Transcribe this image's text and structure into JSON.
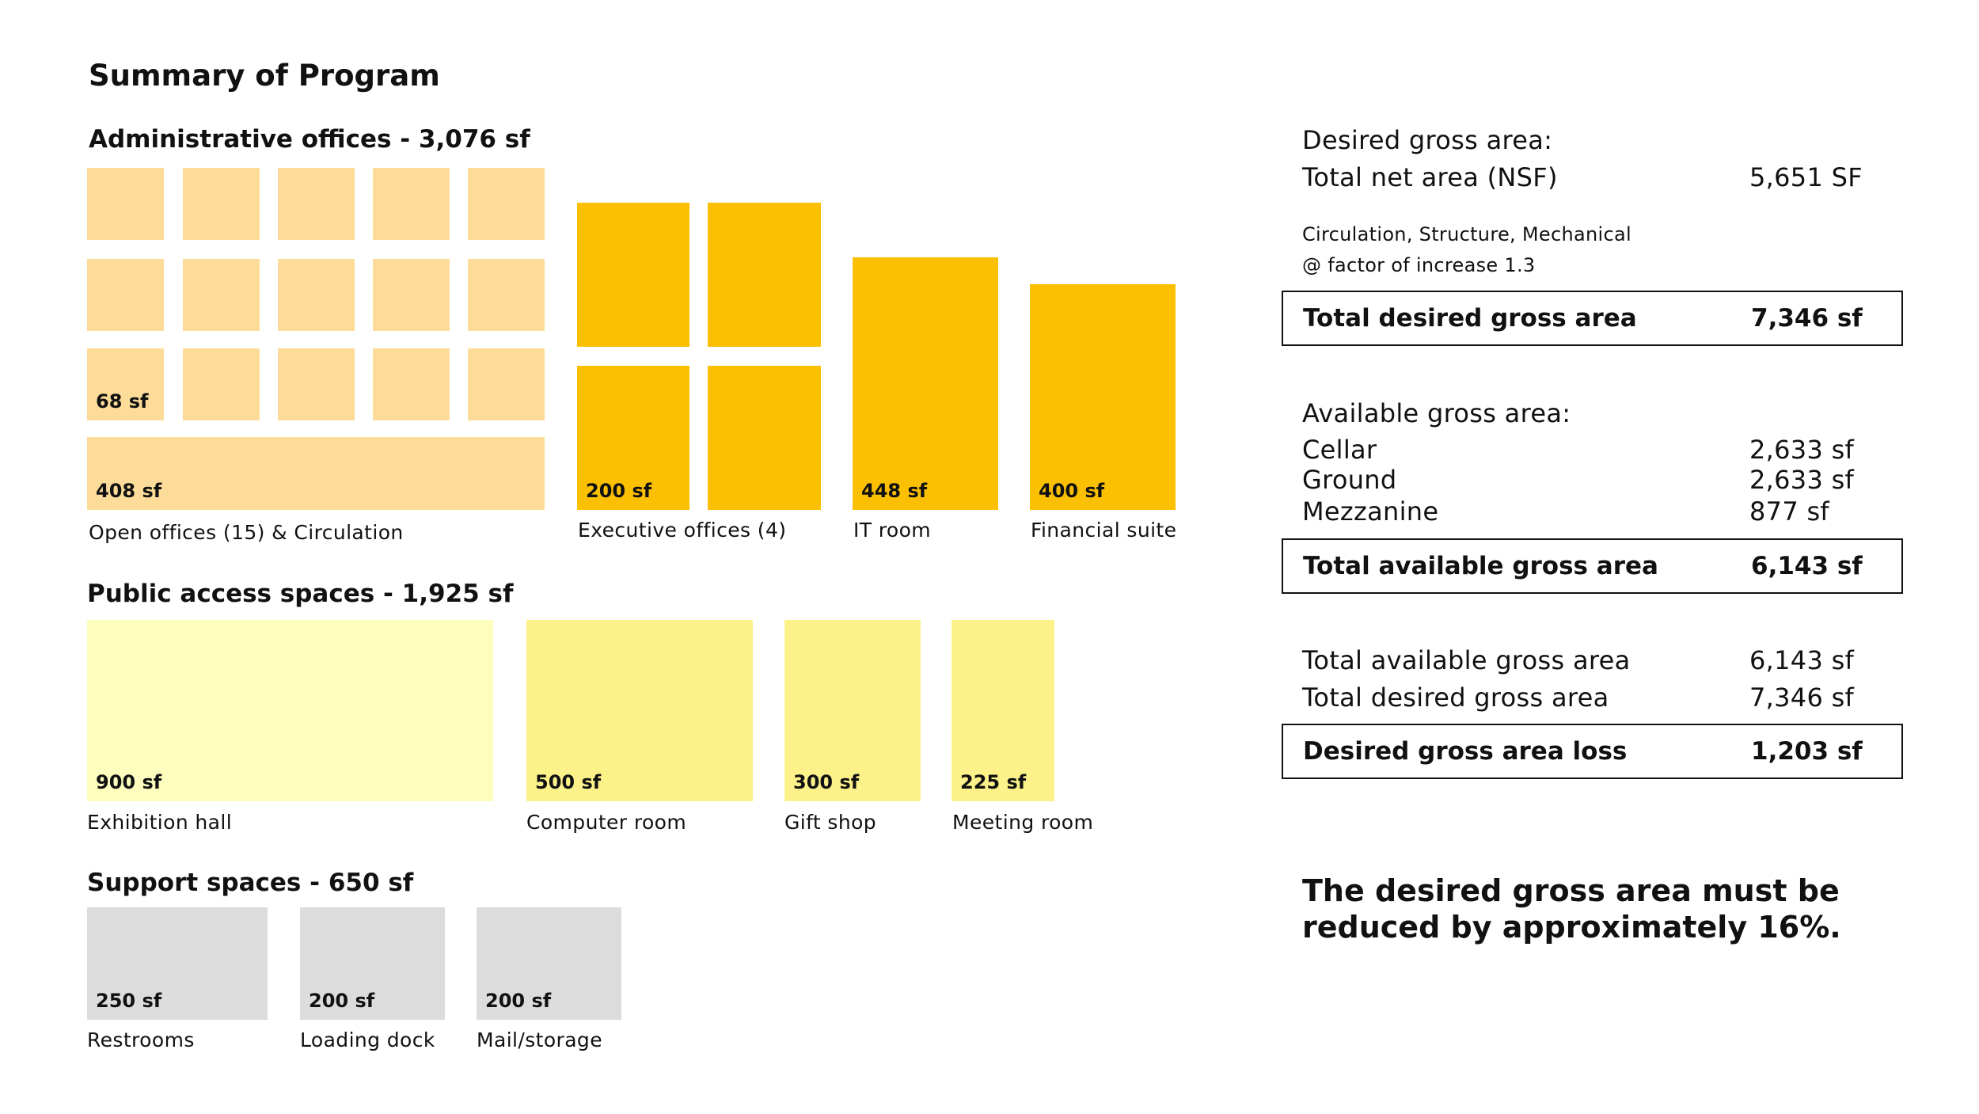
{
  "title": "Summary of Program",
  "admin": {
    "heading": "Administrative offices - 3,076 sf",
    "open_office_value": "68 sf",
    "circulation_value": "408 sf",
    "open_offices_caption": "Open offices  (15) & Circulation",
    "exec_value": "200 sf",
    "exec_caption": "Executive offices  (4)",
    "it_value": "448 sf",
    "it_caption": "IT room",
    "fin_value": "400 sf",
    "fin_caption": "Financial suite",
    "colors": {
      "open": "#fddc99",
      "core": "#fcc002"
    }
  },
  "public": {
    "heading": "Public access spaces - 1,925 sf",
    "items": [
      {
        "value": "900 sf",
        "caption": "Exhibition hall"
      },
      {
        "value": "500 sf",
        "caption": "Computer room"
      },
      {
        "value": "300 sf",
        "caption": "Gift shop"
      },
      {
        "value": "225 sf",
        "caption": "Meeting room"
      }
    ],
    "colors": {
      "hall": "#fdfdbd",
      "rooms": "#fdf28a"
    }
  },
  "support": {
    "heading": "Support spaces - 650 sf",
    "items": [
      {
        "value": "250 sf",
        "caption": "Restrooms"
      },
      {
        "value": "200 sf",
        "caption": "Loading dock"
      },
      {
        "value": "200 sf",
        "caption": "Mail/storage"
      }
    ],
    "color": "#dcdcdc"
  },
  "desired": {
    "heading": "Desired gross area:",
    "net_label": "Total net area (NSF)",
    "net_value": "5,651 SF",
    "factor_line1": "Circulation, Structure, Mechanical",
    "factor_line2": "@ factor of increase 1.3",
    "total_label": "Total desired gross area",
    "total_value": "7,346 sf"
  },
  "available": {
    "heading": "Available gross area:",
    "rows": [
      {
        "label": "Cellar",
        "value": "2,633 sf"
      },
      {
        "label": "Ground",
        "value": "2,633 sf"
      },
      {
        "label": "Mezzanine",
        "value": "877 sf"
      }
    ],
    "total_label": "Total available gross area",
    "total_value": "6,143 sf"
  },
  "comparison": {
    "rows": [
      {
        "label": "Total available gross area",
        "value": "6,143 sf"
      },
      {
        "label": "Total desired gross area",
        "value": "7,346 sf"
      }
    ],
    "total_label": "Desired gross area loss",
    "total_value": "1,203 sf"
  },
  "conclusion": "The desired gross area must be reduced by approximately 16%."
}
